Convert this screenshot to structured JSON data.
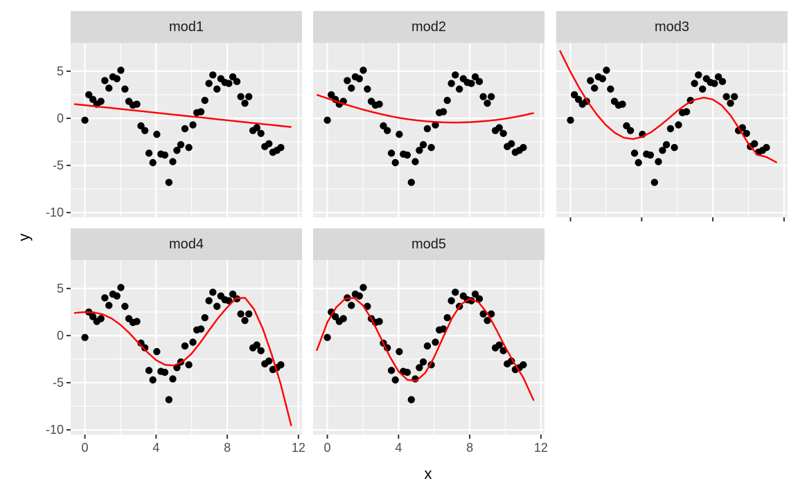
{
  "chart_data": {
    "type": "scatter",
    "xlabel": "x",
    "ylabel": "y",
    "xlim": [
      -0.8,
      12.2
    ],
    "ylim": [
      -10.5,
      8.0
    ],
    "x_ticks": [
      0,
      4,
      8,
      12
    ],
    "x_tick_labels": [
      "0",
      "4",
      "8",
      "12"
    ],
    "y_ticks": [
      5,
      0,
      -5,
      -10
    ],
    "y_tick_labels": [
      "5",
      "0",
      "-5",
      "-10"
    ],
    "colors": {
      "points": "#000000",
      "fit": "#ff0000",
      "panel": "#ebebeb",
      "strip": "#d9d9d9"
    },
    "points": {
      "x": [
        0.0,
        0.22,
        0.45,
        0.67,
        0.9,
        1.12,
        1.35,
        1.57,
        1.8,
        2.02,
        2.25,
        2.47,
        2.7,
        2.92,
        3.15,
        3.37,
        3.6,
        3.82,
        4.04,
        4.27,
        4.49,
        4.72,
        4.94,
        5.17,
        5.39,
        5.62,
        5.84,
        6.07,
        6.29,
        6.52,
        6.74,
        6.97,
        7.19,
        7.42,
        7.64,
        7.87,
        8.09,
        8.31,
        8.54,
        8.76,
        8.99,
        9.21,
        9.44,
        9.66,
        9.89,
        10.11,
        10.34,
        10.56,
        10.79,
        11.01
      ],
      "y": [
        -0.2,
        2.5,
        2.0,
        1.5,
        1.8,
        4.0,
        3.2,
        4.4,
        4.2,
        5.1,
        3.1,
        1.8,
        1.4,
        1.5,
        -0.8,
        -1.3,
        -3.7,
        -4.7,
        -1.7,
        -3.8,
        -3.9,
        -6.8,
        -4.6,
        -3.4,
        -2.8,
        -1.1,
        -3.1,
        -0.7,
        0.6,
        0.7,
        1.9,
        3.7,
        4.6,
        3.1,
        4.2,
        3.8,
        3.7,
        4.4,
        3.9,
        2.3,
        1.6,
        2.3,
        -1.3,
        -1.0,
        -1.6,
        -3.0,
        -2.7,
        -3.6,
        -3.4,
        -3.1
      ]
    },
    "fit_x": [
      -0.6,
      0.0,
      0.5,
      1.0,
      1.5,
      2.0,
      2.5,
      3.0,
      3.5,
      4.0,
      4.5,
      5.0,
      5.5,
      6.0,
      6.5,
      7.0,
      7.5,
      8.0,
      8.5,
      9.0,
      9.5,
      10.0,
      10.5,
      11.0,
      11.6
    ],
    "series": [
      {
        "name": "mod1",
        "values": [
          1.5,
          1.39,
          1.29,
          1.19,
          1.09,
          0.99,
          0.89,
          0.79,
          0.69,
          0.59,
          0.49,
          0.39,
          0.29,
          0.19,
          0.09,
          -0.01,
          -0.11,
          -0.21,
          -0.31,
          -0.41,
          -0.51,
          -0.61,
          -0.71,
          -0.81,
          -0.93
        ]
      },
      {
        "name": "mod2",
        "values": [
          2.5,
          2.12,
          1.8,
          1.49,
          1.2,
          0.93,
          0.68,
          0.45,
          0.24,
          0.06,
          -0.09,
          -0.21,
          -0.31,
          -0.38,
          -0.43,
          -0.45,
          -0.44,
          -0.41,
          -0.35,
          -0.27,
          -0.17,
          -0.04,
          0.12,
          0.31,
          0.56
        ]
      },
      {
        "name": "mod3",
        "values": [
          7.2,
          4.91,
          3.2,
          1.67,
          0.35,
          -0.73,
          -1.55,
          -2.06,
          -2.2,
          -1.99,
          -1.51,
          -0.82,
          -0.04,
          0.78,
          1.48,
          1.98,
          2.19,
          2.0,
          1.38,
          0.29,
          -1.16,
          -2.71,
          -3.86,
          -4.1,
          -4.7
        ]
      },
      {
        "name": "mod4",
        "values": [
          2.4,
          2.5,
          2.46,
          2.25,
          1.82,
          1.14,
          0.26,
          -0.76,
          -1.76,
          -2.6,
          -3.1,
          -3.17,
          -2.76,
          -1.9,
          -0.7,
          0.62,
          1.9,
          3.0,
          3.97,
          4.0,
          2.8,
          0.71,
          -2.02,
          -5.13,
          -9.6
        ]
      },
      {
        "name": "mod5",
        "values": [
          -1.6,
          1.42,
          3.0,
          3.9,
          4.0,
          3.21,
          1.7,
          -0.23,
          -2.2,
          -3.8,
          -4.7,
          -4.8,
          -3.96,
          -2.3,
          -0.2,
          1.83,
          3.3,
          3.9,
          3.53,
          2.34,
          0.62,
          -1.24,
          -2.91,
          -4.43,
          -6.9
        ]
      }
    ]
  }
}
